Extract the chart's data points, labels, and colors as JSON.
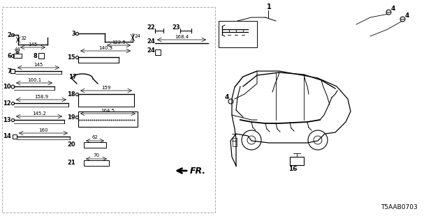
{
  "bg_color": "#ffffff",
  "line_color": "#000000",
  "dashed_color": "#aaaaaa",
  "diagram_code": "T5AAB0703"
}
